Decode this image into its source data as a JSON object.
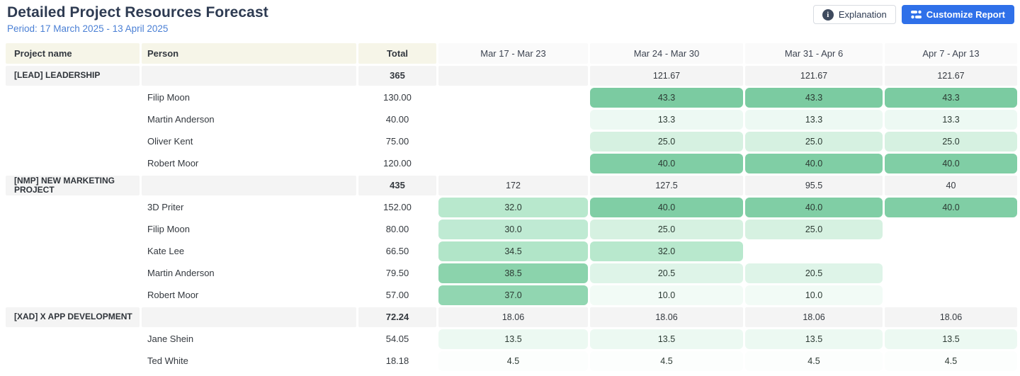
{
  "page": {
    "title": "Detailed Project Resources Forecast",
    "period": "Period: 17 March 2025 - 13 April 2025"
  },
  "toolbar": {
    "explanation_label": "Explanation",
    "customize_label": "Customize Report",
    "customize_color": "#2f70e9"
  },
  "colors": {
    "header_left_bg": "#f6f5e8",
    "header_week_bg": "#fafafa",
    "group_row_bg": "#f4f4f4",
    "title_color": "#2e3b52",
    "period_color": "#4b80d5",
    "heat_green_max": "#7bcba1",
    "heat_green_min": "#f2fbf6"
  },
  "table": {
    "columns": [
      "Project name",
      "Person",
      "Total",
      "Mar 17 - Mar 23",
      "Mar 24 - Mar 30",
      "Mar 31 - Apr 6",
      "Apr 7 - Apr 13"
    ],
    "rows": [
      {
        "type": "group",
        "project": "[LEAD] LEADERSHIP",
        "person": "",
        "total": "365",
        "weeks": [
          {
            "v": ""
          },
          {
            "v": "121.67"
          },
          {
            "v": "121.67"
          },
          {
            "v": "121.67"
          }
        ]
      },
      {
        "type": "person",
        "project": "",
        "person": "Filip Moon",
        "total": "130.00",
        "weeks": [
          {
            "v": ""
          },
          {
            "v": "43.3",
            "c": "#7bcba1"
          },
          {
            "v": "43.3",
            "c": "#7bcba1"
          },
          {
            "v": "43.3",
            "c": "#7bcba1"
          }
        ]
      },
      {
        "type": "person",
        "project": "",
        "person": "Martin Anderson",
        "total": "40.00",
        "weeks": [
          {
            "v": ""
          },
          {
            "v": "13.3",
            "c": "#edf9f3"
          },
          {
            "v": "13.3",
            "c": "#edf9f3"
          },
          {
            "v": "13.3",
            "c": "#edf9f3"
          }
        ]
      },
      {
        "type": "person",
        "project": "",
        "person": "Oliver Kent",
        "total": "75.00",
        "weeks": [
          {
            "v": ""
          },
          {
            "v": "25.0",
            "c": "#d6f1e1"
          },
          {
            "v": "25.0",
            "c": "#d6f1e1"
          },
          {
            "v": "25.0",
            "c": "#d6f1e1"
          }
        ]
      },
      {
        "type": "person",
        "project": "",
        "person": "Robert Moor",
        "total": "120.00",
        "weeks": [
          {
            "v": ""
          },
          {
            "v": "40.0",
            "c": "#80cea5"
          },
          {
            "v": "40.0",
            "c": "#80cea5"
          },
          {
            "v": "40.0",
            "c": "#80cea5"
          }
        ]
      },
      {
        "type": "group",
        "project": "[NMP] NEW MARKETING PROJECT",
        "person": "",
        "total": "435",
        "weeks": [
          {
            "v": "172"
          },
          {
            "v": "127.5"
          },
          {
            "v": "95.5"
          },
          {
            "v": "40"
          }
        ]
      },
      {
        "type": "person",
        "project": "",
        "person": "3D Priter",
        "total": "152.00",
        "weeks": [
          {
            "v": "32.0",
            "c": "#b8e8cd"
          },
          {
            "v": "40.0",
            "c": "#80cea5"
          },
          {
            "v": "40.0",
            "c": "#80cea5"
          },
          {
            "v": "40.0",
            "c": "#80cea5"
          }
        ]
      },
      {
        "type": "person",
        "project": "",
        "person": "Filip Moon",
        "total": "80.00",
        "weeks": [
          {
            "v": "30.0",
            "c": "#bfead3"
          },
          {
            "v": "25.0",
            "c": "#d6f1e1"
          },
          {
            "v": "25.0",
            "c": "#d6f1e1"
          },
          {
            "v": ""
          }
        ]
      },
      {
        "type": "person",
        "project": "",
        "person": "Kate Lee",
        "total": "66.50",
        "weeks": [
          {
            "v": "34.5",
            "c": "#b1e5c8"
          },
          {
            "v": "32.0",
            "c": "#b8e8cd"
          },
          {
            "v": ""
          },
          {
            "v": ""
          }
        ]
      },
      {
        "type": "person",
        "project": "",
        "person": "Martin Anderson",
        "total": "79.50",
        "weeks": [
          {
            "v": "38.5",
            "c": "#8bd3ac"
          },
          {
            "v": "20.5",
            "c": "#def4e8"
          },
          {
            "v": "20.5",
            "c": "#def4e8"
          },
          {
            "v": ""
          }
        ]
      },
      {
        "type": "person",
        "project": "",
        "person": "Robert Moor",
        "total": "57.00",
        "weeks": [
          {
            "v": "37.0",
            "c": "#91d6b1"
          },
          {
            "v": "10.0",
            "c": "#f2fbf6"
          },
          {
            "v": "10.0",
            "c": "#f2fbf6"
          },
          {
            "v": ""
          }
        ]
      },
      {
        "type": "group",
        "project": "[XAD] X APP DEVELOPMENT",
        "person": "",
        "total": "72.24",
        "weeks": [
          {
            "v": "18.06"
          },
          {
            "v": "18.06"
          },
          {
            "v": "18.06"
          },
          {
            "v": "18.06"
          }
        ]
      },
      {
        "type": "person",
        "project": "",
        "person": "Jane Shein",
        "total": "54.05",
        "weeks": [
          {
            "v": "13.5",
            "c": "#ecf9f2"
          },
          {
            "v": "13.5",
            "c": "#ecf9f2"
          },
          {
            "v": "13.5",
            "c": "#ecf9f2"
          },
          {
            "v": "13.5",
            "c": "#ecf9f2"
          }
        ]
      },
      {
        "type": "person",
        "project": "",
        "person": "Ted White",
        "total": "18.18",
        "weeks": [
          {
            "v": "4.5",
            "c": "#fcfefd"
          },
          {
            "v": "4.5",
            "c": "#fcfefd"
          },
          {
            "v": "4.5",
            "c": "#fcfefd"
          },
          {
            "v": "4.5",
            "c": "#fcfefd"
          }
        ]
      }
    ]
  }
}
